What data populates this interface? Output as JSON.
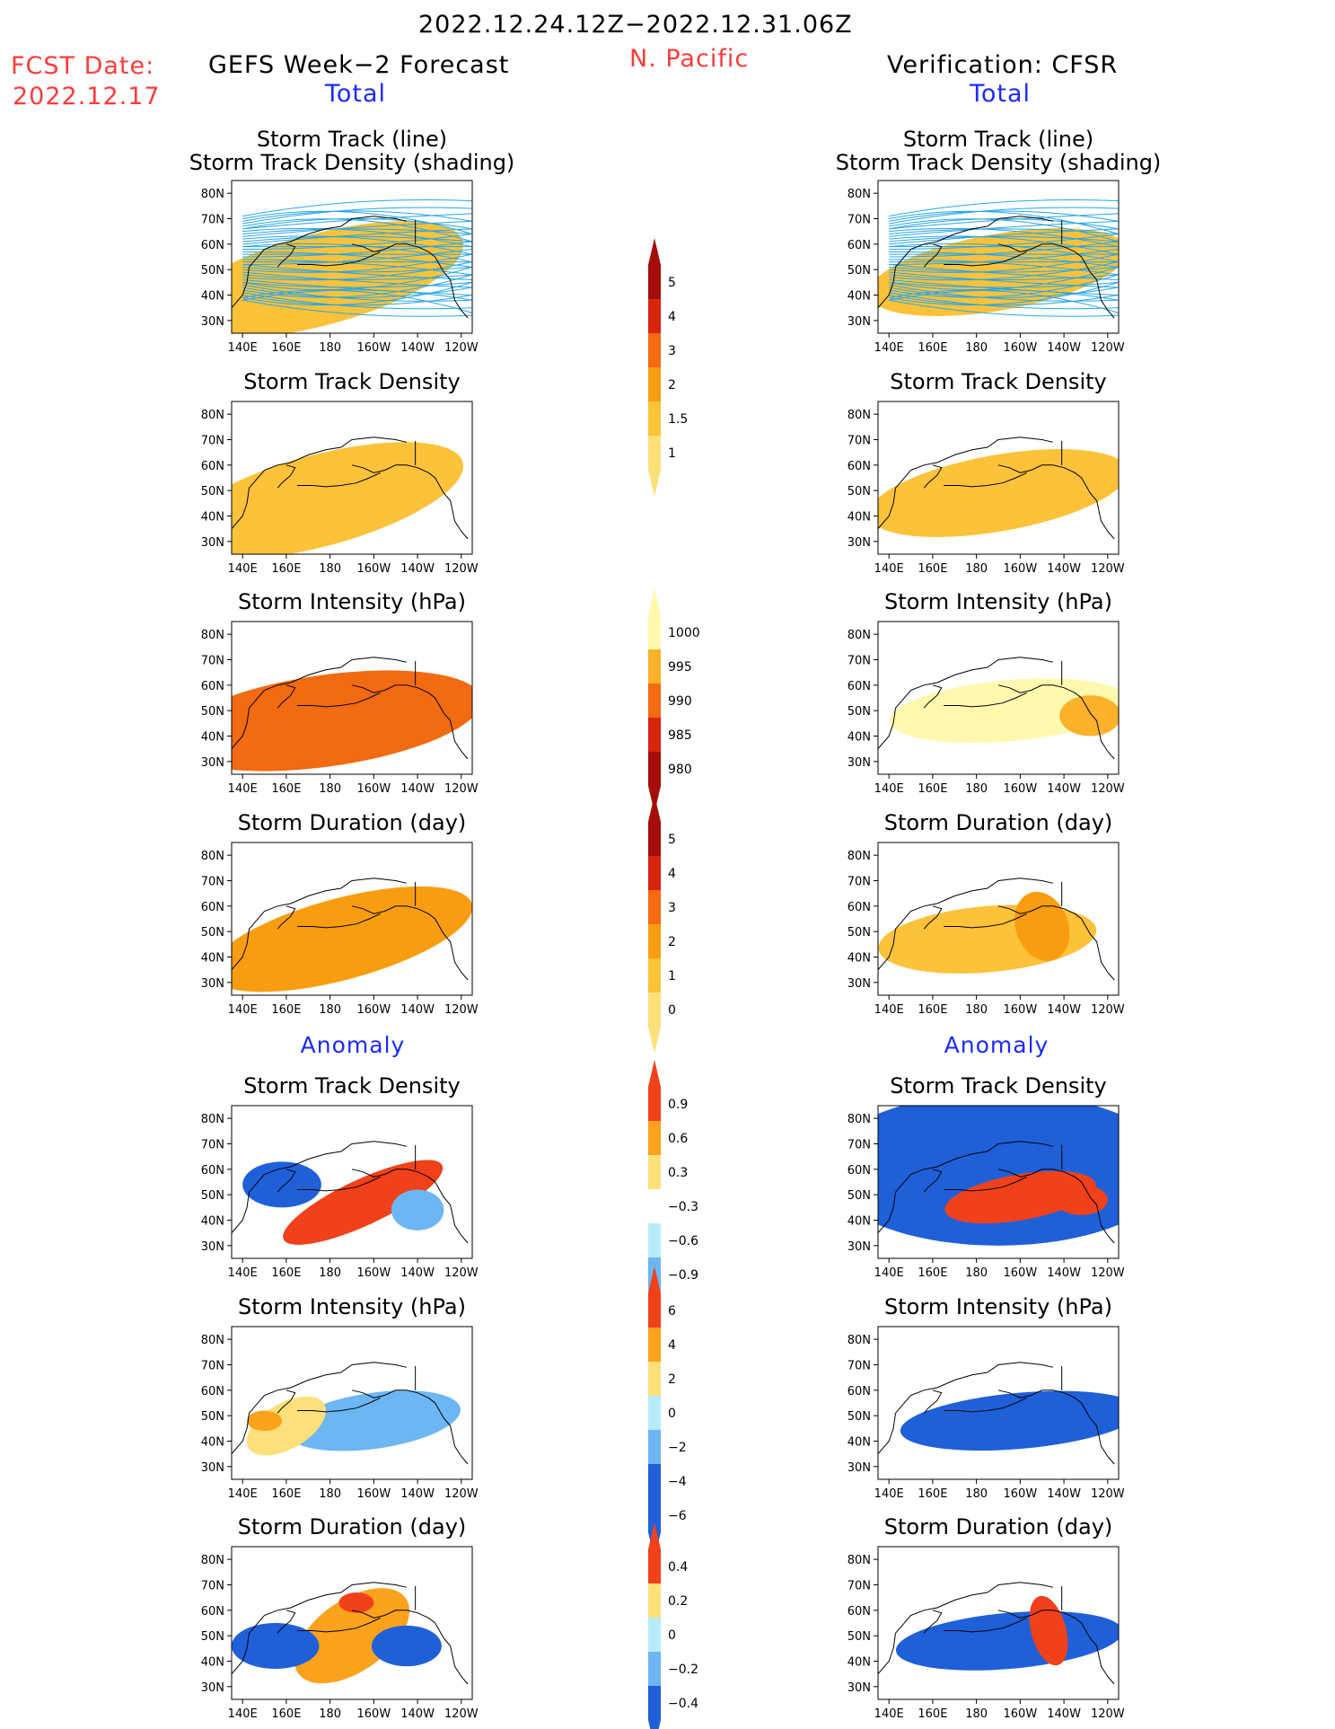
{
  "header": {
    "period": "2022.12.24.12Z−2022.12.31.06Z",
    "region": "N. Pacific",
    "fcst_label": "FCST Date:",
    "fcst_date": "2022.12.17",
    "left_title": "GEFS Week−2 Forecast",
    "right_title": "Verification: CFSR",
    "total_label": "Total",
    "anomaly_label": "Anomaly"
  },
  "axes": {
    "x_ticks": [
      "140E",
      "160E",
      "180",
      "160W",
      "140W",
      "120W"
    ],
    "y_ticks": [
      "80N",
      "70N",
      "60N",
      "50N",
      "40N",
      "30N"
    ]
  },
  "panels": {
    "track_line_a": "Storm Track (line)",
    "track_line_b": "Storm Track Density (shading)",
    "density": "Storm Track Density",
    "intensity": "Storm Intensity (hPa)",
    "duration": "Storm Duration (day)"
  },
  "colorbars": {
    "density_total": [
      "5",
      "4",
      "3",
      "2",
      "1.5",
      "1"
    ],
    "intensity_total": [
      "1000",
      "995",
      "990",
      "985",
      "980"
    ],
    "duration_total": [
      "5",
      "4",
      "3",
      "2",
      "1",
      "0"
    ],
    "density_anom": [
      "0.9",
      "0.6",
      "0.3",
      "−0.3",
      "−0.6",
      "−0.9"
    ],
    "intensity_anom": [
      "6",
      "4",
      "2",
      "0",
      "−2",
      "−4",
      "−6"
    ],
    "duration_anom": [
      "0.4",
      "0.2",
      "0",
      "−0.2",
      "−0.4"
    ]
  },
  "colors": {
    "warm": [
      "#fff9b0",
      "#fde07a",
      "#fcc23a",
      "#f99d10",
      "#f26a12",
      "#d8250e",
      "#a40d0a"
    ],
    "intensity": [
      "#a40d0a",
      "#d8250e",
      "#f26a12",
      "#fcb12a",
      "#fff9b0"
    ],
    "anom_pos": [
      "#fde07a",
      "#fca21c",
      "#f1411a"
    ],
    "anom_neg": [
      "#b8ecfb",
      "#6cb6f4",
      "#1f60d9"
    ],
    "track_line": "#28a6e8"
  },
  "chart_data": {
    "type": "heatmap",
    "domain": "N. Pacific",
    "xlim": [
      "140E",
      "120W"
    ],
    "ylim": [
      "25N",
      "85N"
    ],
    "forecast": {
      "density_total": [
        {
          "lon": 205,
          "lat": 53,
          "level": 6,
          "rx": 26,
          "ry": 7,
          "rot": -15
        },
        {
          "lon": 195,
          "lat": 51,
          "level": 5,
          "rx": 38,
          "ry": 10,
          "rot": -15
        },
        {
          "lon": 185,
          "lat": 48,
          "level": 4,
          "rx": 50,
          "ry": 13,
          "rot": -15
        },
        {
          "lon": 180,
          "lat": 47,
          "level": 3,
          "rx": 60,
          "ry": 16,
          "rot": -15
        },
        {
          "lon": 175,
          "lat": 46,
          "level": 2,
          "rx": 68,
          "ry": 18,
          "rot": -15
        }
      ],
      "intensity_total": [
        {
          "lon": 190,
          "lat": 50,
          "level": 4,
          "rx": 50,
          "ry": 13,
          "rot": -8
        },
        {
          "lon": 185,
          "lat": 47,
          "level": 3,
          "rx": 62,
          "ry": 15,
          "rot": -8
        },
        {
          "lon": 178,
          "lat": 46,
          "level": 2,
          "rx": 72,
          "ry": 18,
          "rot": -8
        }
      ],
      "duration_total": [
        {
          "lon": 195,
          "lat": 50,
          "level": 4,
          "rx": 45,
          "ry": 12,
          "rot": -15
        },
        {
          "lon": 185,
          "lat": 47,
          "level": 3,
          "rx": 62,
          "ry": 16,
          "rot": -15
        }
      ],
      "density_anom": [
        {
          "lon": 195,
          "lat": 47,
          "value": 0.9,
          "rx": 40,
          "ry": 9,
          "rot": -25
        },
        {
          "lon": 158,
          "lat": 54,
          "value": -0.9,
          "rx": 18,
          "ry": 9,
          "rot": 0
        },
        {
          "lon": 220,
          "lat": 44,
          "value": -0.6,
          "rx": 12,
          "ry": 8,
          "rot": 0
        }
      ],
      "intensity_anom": [
        {
          "lon": 200,
          "lat": 48,
          "value": -4,
          "rx": 40,
          "ry": 11,
          "rot": -8
        },
        {
          "lon": 160,
          "lat": 46,
          "value": 2,
          "rx": 20,
          "ry": 9,
          "rot": -30
        },
        {
          "lon": 150,
          "lat": 48,
          "value": 4,
          "rx": 8,
          "ry": 4,
          "rot": 0
        }
      ],
      "duration_anom": [
        {
          "lon": 190,
          "lat": 50,
          "value": 0.2,
          "rx": 30,
          "ry": 14,
          "rot": -35
        },
        {
          "lon": 155,
          "lat": 46,
          "value": -0.4,
          "rx": 20,
          "ry": 9,
          "rot": 0
        },
        {
          "lon": 215,
          "lat": 46,
          "value": -0.4,
          "rx": 16,
          "ry": 8,
          "rot": 0
        },
        {
          "lon": 192,
          "lat": 63,
          "value": 0.4,
          "rx": 8,
          "ry": 4,
          "rot": 0
        }
      ]
    },
    "verification": {
      "density_total": [
        {
          "lon": 160,
          "lat": 44,
          "level": 6,
          "rx": 7,
          "ry": 4,
          "rot": 0
        },
        {
          "lon": 192,
          "lat": 54,
          "level": 6,
          "rx": 26,
          "ry": 7,
          "rot": -15
        },
        {
          "lon": 222,
          "lat": 50,
          "level": 6,
          "rx": 8,
          "ry": 5,
          "rot": 0
        },
        {
          "lon": 190,
          "lat": 50,
          "level": 4,
          "rx": 50,
          "ry": 12,
          "rot": -10
        },
        {
          "lon": 190,
          "lat": 49,
          "level": 2,
          "rx": 60,
          "ry": 15,
          "rot": -10
        }
      ],
      "intensity_total": [
        {
          "lon": 195,
          "lat": 50,
          "level": 4,
          "rx": 55,
          "ry": 12,
          "rot": -5
        },
        {
          "lon": 232,
          "lat": 48,
          "level": 3,
          "rx": 14,
          "ry": 8,
          "rot": 0
        }
      ],
      "duration_total": [
        {
          "lon": 185,
          "lat": 47,
          "level": 2,
          "rx": 50,
          "ry": 13,
          "rot": -5
        },
        {
          "lon": 210,
          "lat": 52,
          "level": 3,
          "rx": 12,
          "ry": 14,
          "rot": -20
        }
      ],
      "density_anom": [
        {
          "lon": 190,
          "lat": 60,
          "value": -0.9,
          "rx": 80,
          "ry": 30,
          "rot": 0
        },
        {
          "lon": 200,
          "lat": 49,
          "value": 0.9,
          "rx": 35,
          "ry": 9,
          "rot": -10
        },
        {
          "lon": 228,
          "lat": 48,
          "value": 0.9,
          "rx": 12,
          "ry": 6,
          "rot": 0
        }
      ],
      "intensity_anom": [
        {
          "lon": 200,
          "lat": 48,
          "value": -6,
          "rx": 55,
          "ry": 11,
          "rot": -5
        }
      ],
      "duration_anom": [
        {
          "lon": 195,
          "lat": 48,
          "value": -0.4,
          "rx": 52,
          "ry": 11,
          "rot": -5
        },
        {
          "lon": 213,
          "lat": 52,
          "value": 0.4,
          "rx": 8,
          "ry": 14,
          "rot": -15
        }
      ]
    }
  }
}
